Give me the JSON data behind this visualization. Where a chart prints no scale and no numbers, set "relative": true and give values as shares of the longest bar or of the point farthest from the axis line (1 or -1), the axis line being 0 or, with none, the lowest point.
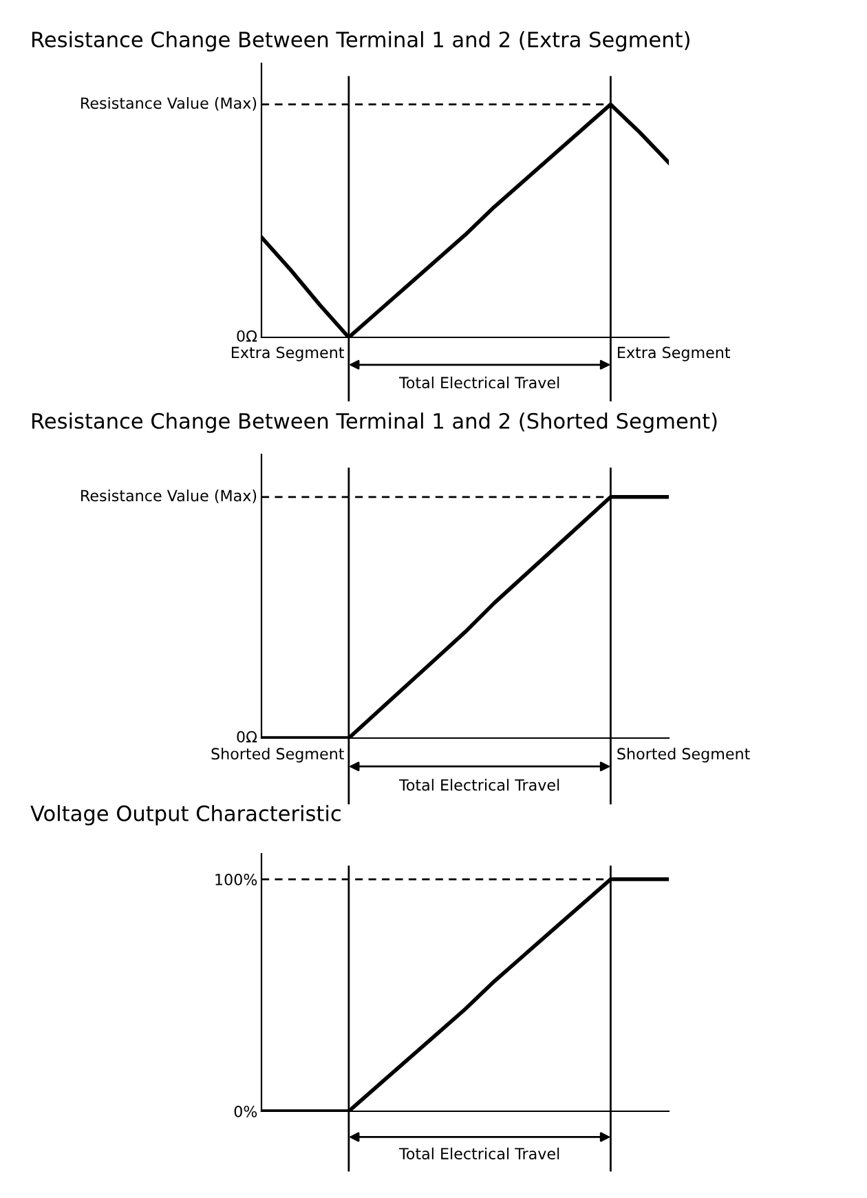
{
  "chart_data": [
    {
      "type": "line",
      "title": "Resistance Change Between Terminal 1 and 2 (Extra Segment)",
      "categories": [
        null,
        null,
        null,
        null,
        null,
        null,
        null,
        null,
        null,
        null,
        null,
        null,
        null,
        null,
        null
      ],
      "values": [
        0.43,
        0.29,
        0.14,
        0,
        0.11,
        0.22,
        0.33,
        0.44,
        0.56,
        0.67,
        0.78,
        0.89,
        1,
        0.88,
        0.75
      ],
      "color": "#000000",
      "relative": true,
      "tick_labels": false,
      "marker": "none",
      "line_style": "solid",
      "ref_lines": [
        {
          "axis": "y",
          "value": 1,
          "line_style": "dashed",
          "color": "#000000"
        }
      ],
      "annotations": [
        "Resistance Value (Max)",
        "0Ω",
        "Extra Segment",
        "Total Electrical Travel",
        "Extra Segment"
      ]
    },
    {
      "type": "line",
      "title": "Resistance Change Between Terminal 1 and 2 (Shorted Segment)",
      "categories": [
        null,
        null,
        null,
        null,
        null,
        null,
        null,
        null,
        null,
        null,
        null,
        null,
        null,
        null,
        null
      ],
      "values": [
        0,
        0,
        0,
        0,
        0.11,
        0.22,
        0.33,
        0.44,
        0.56,
        0.67,
        0.78,
        0.89,
        1,
        1,
        1
      ],
      "color": "#000000",
      "relative": true,
      "tick_labels": false,
      "marker": "none",
      "line_style": "solid",
      "ref_lines": [
        {
          "axis": "y",
          "value": 1,
          "line_style": "dashed",
          "color": "#000000"
        }
      ],
      "annotations": [
        "Resistance Value (Max)",
        "0Ω",
        "Shorted Segment",
        "Total Electrical Travel",
        "Shorted Segment"
      ]
    },
    {
      "type": "line",
      "title": "Voltage Output Characteristic",
      "categories": [
        null,
        null,
        null,
        null,
        null,
        null,
        null,
        null,
        null,
        null,
        null,
        null,
        null,
        null,
        null
      ],
      "values": [
        0,
        0,
        0,
        0,
        11,
        22,
        33,
        44,
        56,
        67,
        78,
        89,
        100,
        100,
        100
      ],
      "color": "#000000",
      "ylim": [
        0,
        111
      ],
      "yticks": [
        {
          "value": 0,
          "label": "0%"
        },
        {
          "value": 100,
          "label": "100%"
        }
      ],
      "tick_labels": "y",
      "marker": "none",
      "line_style": "solid",
      "ref_lines": [
        {
          "axis": "y",
          "value": 100,
          "line_style": "dashed",
          "color": "#000000"
        }
      ],
      "annotations": [
        "Total Electrical Travel"
      ]
    }
  ]
}
